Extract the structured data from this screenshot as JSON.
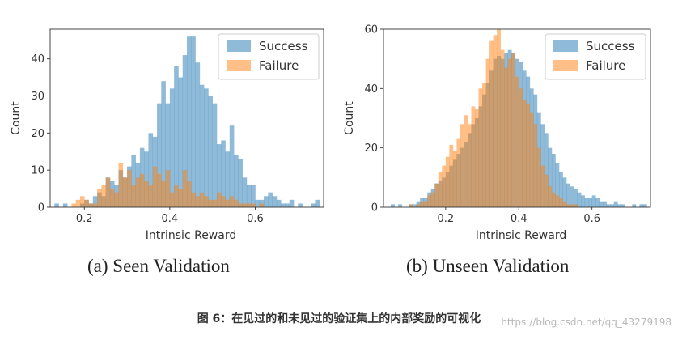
{
  "figure_caption": "图 6：在见过的和未见过的验证集上的内部奖励的可视化",
  "watermark": "https://blog.csdn.net/qq_43279198",
  "colors": {
    "success": "#1f77b4",
    "failure": "#ff7f0e"
  },
  "chart_data": [
    {
      "type": "bar",
      "caption": "(a) Seen Validation",
      "xlabel": "Intrinsic Reward",
      "ylabel": "Count",
      "xlim": [
        0.12,
        0.76
      ],
      "ylim": [
        0,
        48
      ],
      "xticks": [
        "0.2",
        "0.4",
        "0.6"
      ],
      "yticks": [
        "0",
        "10",
        "20",
        "30",
        "40"
      ],
      "legend": "top-right",
      "grid": false,
      "bins": {
        "start": 0.13,
        "width": 0.01
      },
      "series": [
        {
          "name": "Success",
          "values": [
            1,
            0,
            1,
            0,
            0,
            0,
            1,
            2,
            1,
            3,
            4,
            3,
            8,
            7,
            6,
            10,
            8,
            11,
            14,
            12,
            16,
            15,
            20,
            19,
            28,
            34,
            28,
            32,
            38,
            35,
            41,
            46,
            46,
            39,
            33,
            32,
            30,
            28,
            17,
            18,
            15,
            22,
            14,
            13,
            8,
            6,
            6,
            2,
            2,
            3,
            4,
            3,
            2,
            1,
            1,
            2,
            0,
            1,
            0,
            0,
            1,
            2
          ]
        },
        {
          "name": "Failure",
          "values": [
            0,
            0,
            0,
            0,
            1,
            2,
            3,
            2,
            1,
            1,
            5,
            6,
            8,
            5,
            4,
            12,
            8,
            10,
            6,
            8,
            9,
            7,
            6,
            11,
            9,
            7,
            10,
            4,
            6,
            5,
            10,
            7,
            4,
            3,
            4,
            3,
            2,
            2,
            4,
            3,
            2,
            3,
            2,
            1,
            1,
            1,
            1,
            0,
            1,
            0,
            0,
            0,
            0,
            0,
            0,
            0,
            0,
            0,
            0,
            0,
            0,
            0
          ]
        }
      ]
    },
    {
      "type": "bar",
      "caption": "(b) Unseen Validation",
      "xlabel": "Intrinsic Reward",
      "ylabel": "Count",
      "xlim": [
        0.03,
        0.76
      ],
      "ylim": [
        0,
        60
      ],
      "xticks": [
        "0.2",
        "0.4",
        "0.6"
      ],
      "yticks": [
        "0",
        "20",
        "40",
        "60"
      ],
      "legend": "top-right",
      "grid": false,
      "bins": {
        "start": 0.05,
        "width": 0.01
      },
      "series": [
        {
          "name": "Success",
          "values": [
            1,
            0,
            1,
            0,
            0,
            1,
            1,
            2,
            3,
            3,
            5,
            6,
            8,
            9,
            10,
            12,
            14,
            16,
            18,
            20,
            22,
            25,
            28,
            30,
            34,
            38,
            42,
            46,
            50,
            51,
            50,
            52,
            53,
            52,
            50,
            49,
            46,
            44,
            40,
            38,
            32,
            28,
            25,
            20,
            18,
            15,
            12,
            10,
            8,
            7,
            6,
            5,
            4,
            3,
            3,
            4,
            3,
            2,
            2,
            1,
            1,
            2,
            1,
            1,
            0,
            0,
            1,
            0,
            1,
            1
          ]
        },
        {
          "name": "Failure",
          "values": [
            0,
            0,
            0,
            0,
            0,
            1,
            0,
            1,
            2,
            2,
            4,
            5,
            8,
            12,
            14,
            17,
            21,
            19,
            23,
            28,
            31,
            28,
            34,
            33,
            40,
            42,
            50,
            56,
            58,
            60,
            53,
            47,
            50,
            52,
            44,
            40,
            36,
            35,
            32,
            28,
            20,
            14,
            11,
            7,
            5,
            4,
            3,
            2,
            1,
            1,
            1,
            0,
            0,
            0,
            0,
            0,
            0,
            0,
            0,
            0,
            0,
            0,
            0,
            0,
            0,
            0,
            0,
            0,
            0,
            0
          ]
        }
      ]
    }
  ]
}
